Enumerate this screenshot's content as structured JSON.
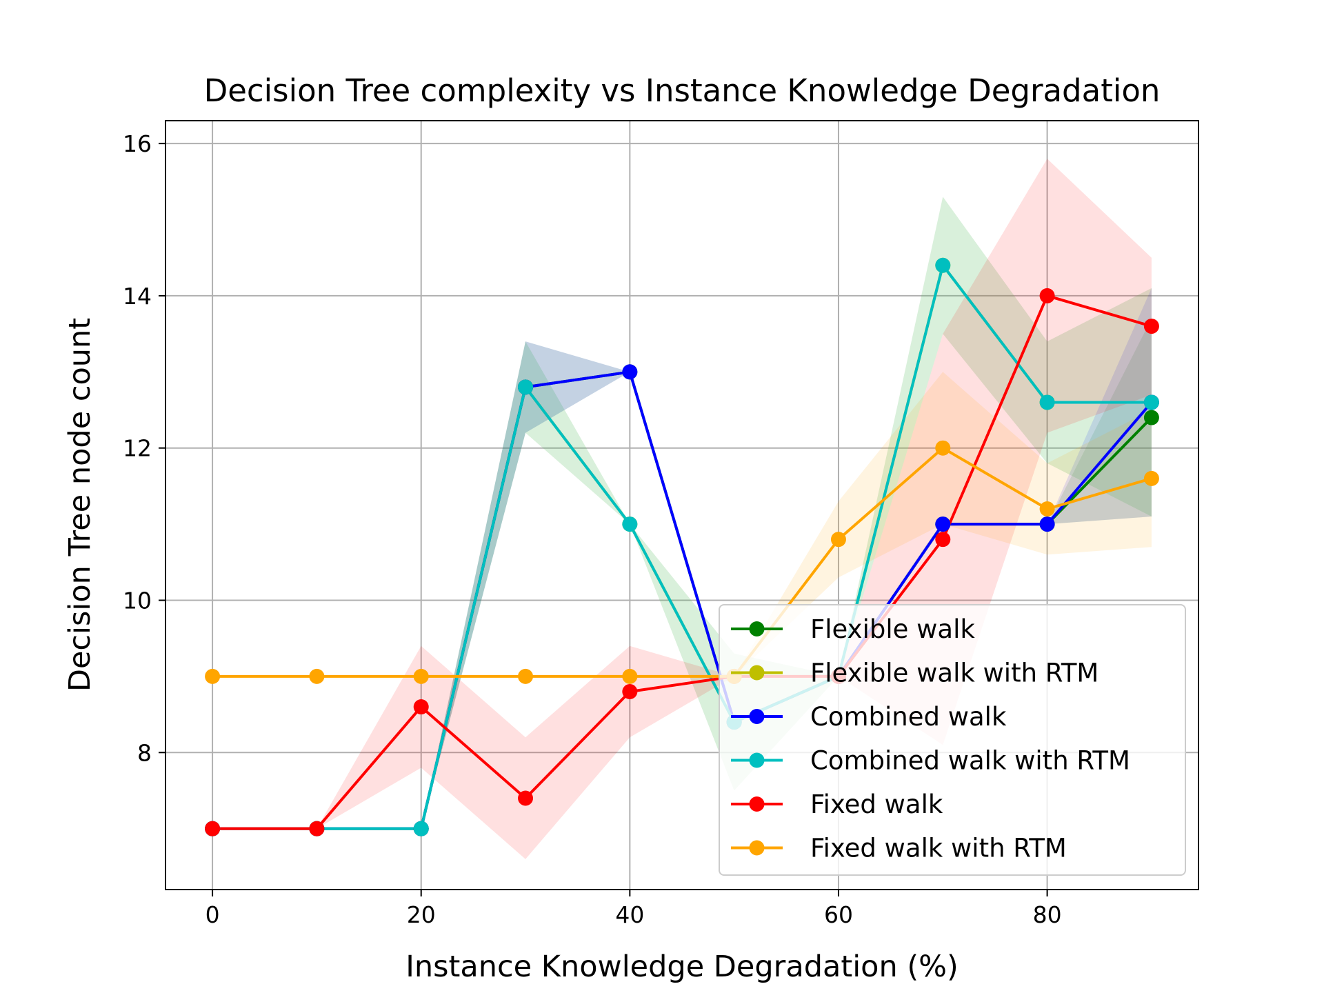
{
  "chart_data": {
    "type": "line",
    "title": "Decision Tree complexity vs Instance Knowledge Degradation",
    "xlabel": "Instance Knowledge Degradation (%)",
    "ylabel": "Decision Tree node count",
    "xlim": [
      -4.5,
      94.5
    ],
    "ylim": [
      6.2,
      16.3
    ],
    "x_ticks": [
      0,
      20,
      40,
      60,
      80
    ],
    "y_ticks": [
      8,
      10,
      12,
      14,
      16
    ],
    "grid": true,
    "legend_position": "lower-right",
    "x": [
      0,
      10,
      20,
      30,
      40,
      50,
      60,
      70,
      80,
      90
    ],
    "series": [
      {
        "name": "Flexible walk",
        "color": "#008000",
        "values": [
          7,
          7,
          7,
          12.8,
          13,
          8.4,
          9,
          11,
          11,
          12.4
        ],
        "band_lower": [
          7,
          7,
          7,
          12.2,
          13,
          8.4,
          9,
          11,
          11,
          11.1
        ],
        "band_upper": [
          7,
          7,
          7,
          13.4,
          13,
          8.4,
          9,
          11,
          11,
          13.7
        ]
      },
      {
        "name": "Flexible walk with RTM",
        "color": "#bfbf00",
        "values": [
          7,
          7,
          7,
          12.8,
          11,
          8.4,
          9,
          14.4,
          12.6,
          12.6
        ],
        "band_lower": [
          7,
          7,
          7,
          12.2,
          11,
          7.5,
          9,
          13.5,
          11.8,
          11.1
        ],
        "band_upper": [
          7,
          7,
          7,
          13.4,
          11,
          9.3,
          9,
          15.3,
          13.4,
          14.1
        ]
      },
      {
        "name": "Combined walk",
        "color": "#0000ff",
        "values": [
          7,
          7,
          7,
          12.8,
          13,
          8.4,
          9,
          11,
          11,
          12.6
        ],
        "band_lower": [
          7,
          7,
          7,
          12.2,
          13,
          8.4,
          9,
          11,
          11,
          11.1
        ],
        "band_upper": [
          7,
          7,
          7,
          13.4,
          13,
          8.4,
          9,
          11,
          11,
          14.1
        ]
      },
      {
        "name": "Combined walk with RTM",
        "color": "#00bfbf",
        "values": [
          7,
          7,
          7,
          12.8,
          11,
          8.4,
          9,
          14.4,
          12.6,
          12.6
        ],
        "band_lower": [
          7,
          7,
          7,
          12.2,
          11,
          7.5,
          9,
          13.5,
          11.8,
          11.1
        ],
        "band_upper": [
          7,
          7,
          7,
          13.4,
          11,
          9.3,
          9,
          15.3,
          13.4,
          14.1
        ]
      },
      {
        "name": "Fixed walk",
        "color": "#ff0000",
        "values": [
          7,
          7,
          8.6,
          7.4,
          8.8,
          9,
          9,
          10.8,
          14,
          13.6
        ],
        "band_lower": [
          7,
          7,
          7.8,
          6.6,
          8.2,
          9,
          9,
          8.1,
          12.2,
          12.7
        ],
        "band_upper": [
          7,
          7,
          9.4,
          8.2,
          9.4,
          9,
          9,
          13.5,
          15.8,
          14.5
        ]
      },
      {
        "name": "Fixed walk with RTM",
        "color": "#ffa500",
        "values": [
          9,
          9,
          9,
          9,
          9,
          9,
          10.8,
          12,
          11.2,
          11.6
        ],
        "band_lower": [
          9,
          9,
          9,
          9,
          9,
          9,
          10.3,
          11.0,
          10.6,
          10.7
        ],
        "band_upper": [
          9,
          9,
          9,
          9,
          9,
          9,
          11.3,
          13.0,
          11.8,
          12.5
        ]
      }
    ]
  }
}
